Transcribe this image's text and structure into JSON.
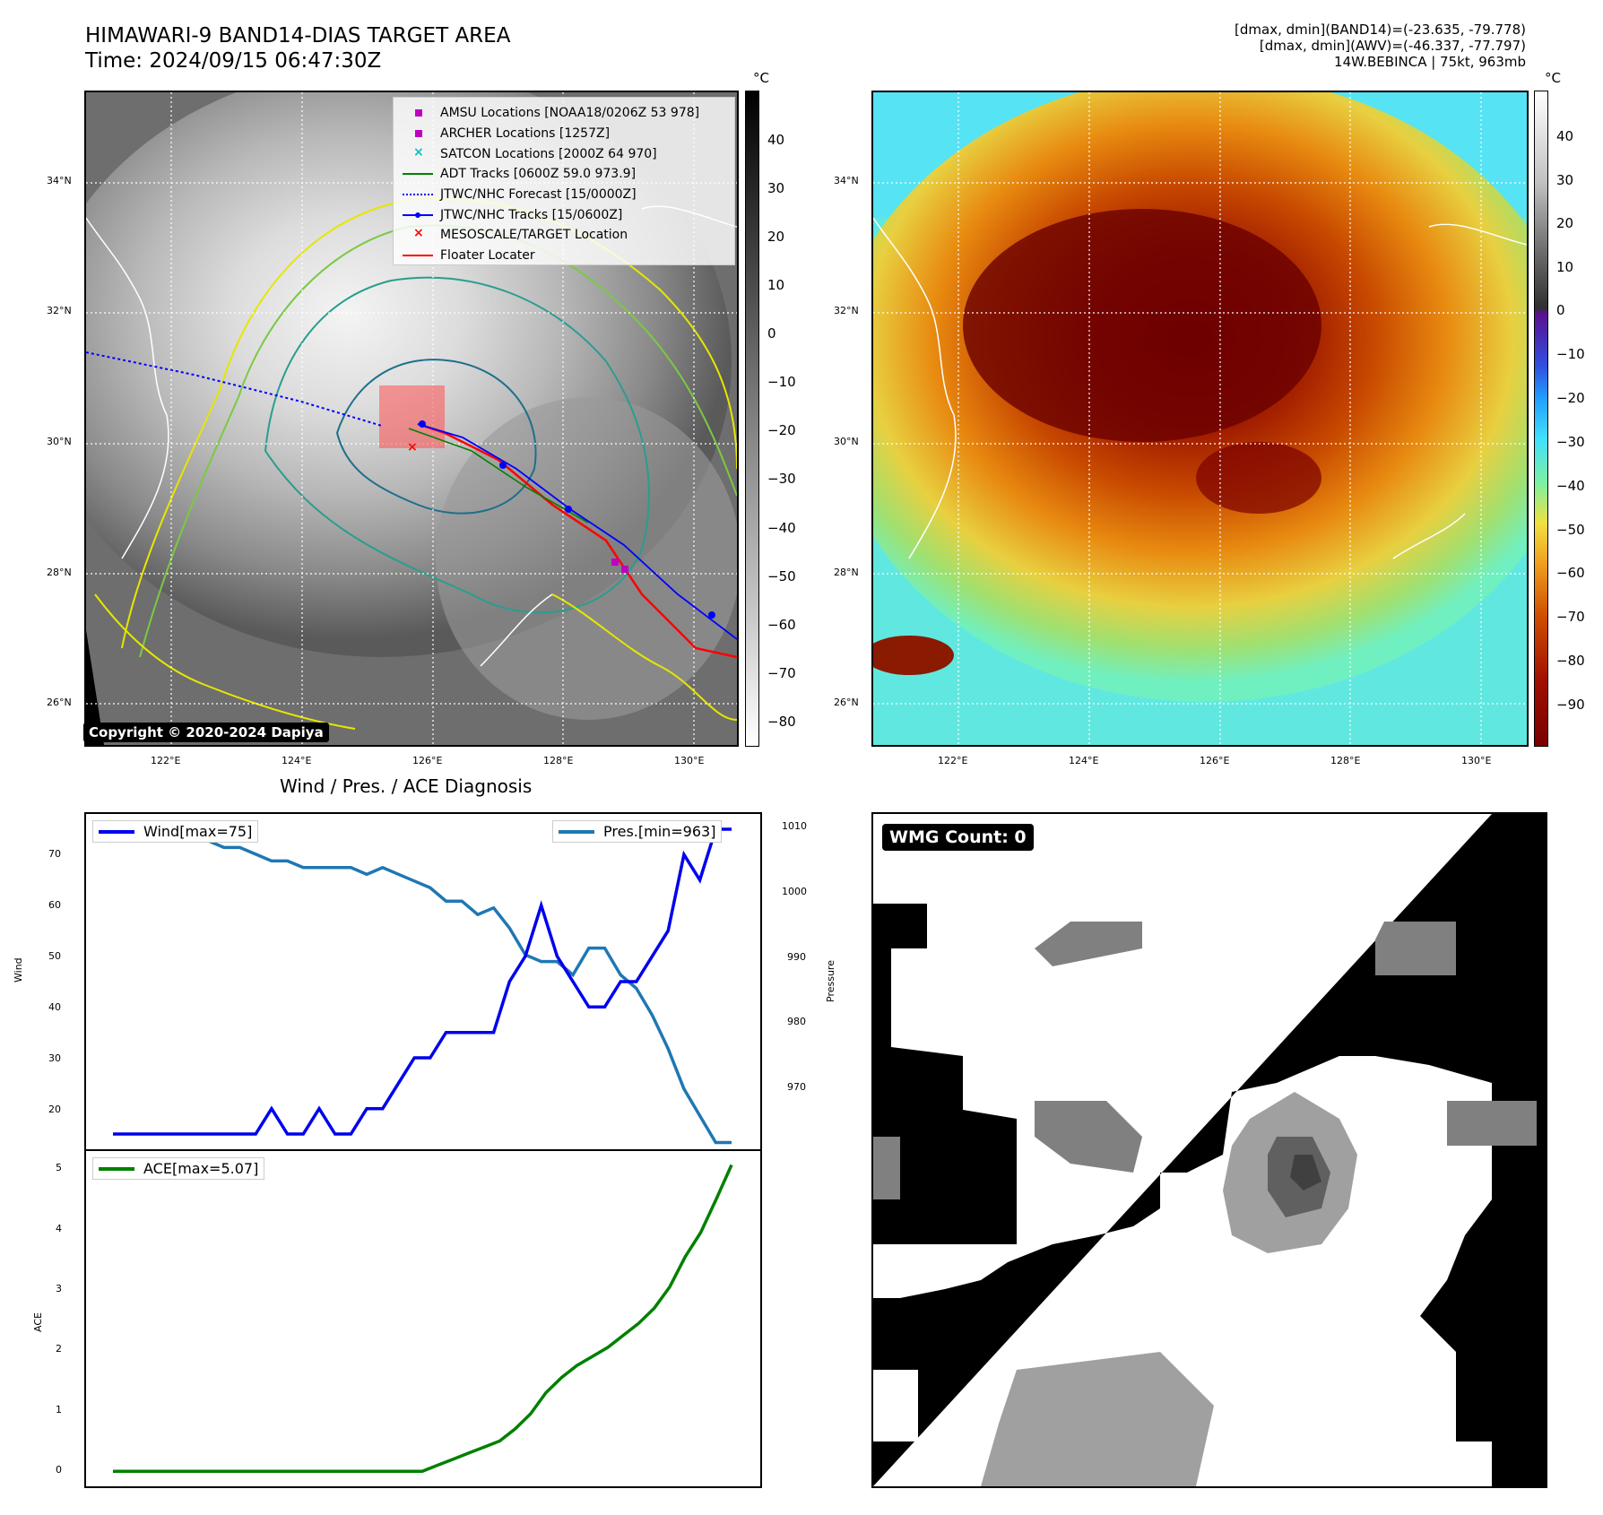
{
  "header": {
    "title_line1": "HIMAWARI-9 BAND14-DIAS TARGET AREA",
    "title_line2": "Time: 2024/09/15 06:47:30Z",
    "info_line1": "[dmax, dmin](BAND14)=(-23.635, -79.778)",
    "info_line2": "[dmax, dmin](AWV)=(-46.337, -77.797)",
    "info_line3": "14W.BEBINCA | 75kt, 963mb"
  },
  "map": {
    "lat_labels": [
      "34°N",
      "32°N",
      "30°N",
      "28°N",
      "26°N"
    ],
    "lon_labels": [
      "122°E",
      "124°E",
      "126°E",
      "128°E",
      "130°E"
    ],
    "copyright": "Copyright © 2020-2024 Dapiya",
    "legend": [
      {
        "label": "AMSU Locations [NOAA18/0206Z 53 978]",
        "symbol": "square",
        "color": "#c000c0"
      },
      {
        "label": "ARCHER Locations [1257Z]",
        "symbol": "square",
        "color": "#c000c0"
      },
      {
        "label": "SATCON Locations [2000Z 64 970]",
        "symbol": "x",
        "color": "#00bfbf"
      },
      {
        "label": "ADT Tracks [0600Z 59.0 973.9]",
        "symbol": "line",
        "color": "#008000"
      },
      {
        "label": "JTWC/NHC Forecast [15/0000Z]",
        "symbol": "dotted",
        "color": "#0000ff"
      },
      {
        "label": "JTWC/NHC Tracks [15/0600Z]",
        "symbol": "line-dot",
        "color": "#0000ff"
      },
      {
        "label": "MESOSCALE/TARGET Location",
        "symbol": "x",
        "color": "#ff0000"
      },
      {
        "label": "Floater Locater",
        "symbol": "line",
        "color": "#ff0000"
      }
    ]
  },
  "colorbars": {
    "unit": "°C",
    "left_ticks": [
      "40",
      "30",
      "20",
      "10",
      "0",
      "−10",
      "−20",
      "−30",
      "−40",
      "−50",
      "−60",
      "−70",
      "−80"
    ],
    "right_ticks": [
      "40",
      "30",
      "20",
      "10",
      "0",
      "−10",
      "−20",
      "−30",
      "−40",
      "−50",
      "−60",
      "−70",
      "−80",
      "−90"
    ]
  },
  "diagnosis": {
    "title": "Wind / Pres. / ACE Diagnosis",
    "wind_axis_label": "Wind",
    "pressure_axis_label": "Pressure",
    "ace_axis_label": "ACE",
    "wind_ticks": [
      "70",
      "60",
      "50",
      "40",
      "30",
      "20"
    ],
    "pressure_ticks": [
      "1010",
      "1000",
      "990",
      "980",
      "970"
    ],
    "ace_ticks": [
      "5",
      "4",
      "3",
      "2",
      "1",
      "0"
    ],
    "wind_legend": "Wind[max=75]",
    "pressure_legend": "Pres.[min=963]",
    "ace_legend": "ACE[max=5.07]"
  },
  "wmg": {
    "label": "WMG Count: 0"
  },
  "chart_data": [
    {
      "type": "line",
      "series": [
        {
          "name": "Wind[max=75]",
          "color": "#0000ee",
          "values": [
            15,
            15,
            15,
            15,
            15,
            15,
            15,
            15,
            15,
            15,
            20,
            15,
            15,
            20,
            15,
            15,
            20,
            20,
            25,
            30,
            30,
            35,
            35,
            35,
            35,
            45,
            50,
            60,
            50,
            45,
            40,
            40,
            45,
            45,
            50,
            55,
            70,
            65,
            75,
            75
          ]
        },
        {
          "name": "Pres.[min=963]",
          "color": "#1f77b4",
          "values": [
            1009,
            1008,
            1008,
            1008,
            1008,
            1008,
            1008,
            1007,
            1007,
            1006,
            1005,
            1005,
            1004,
            1004,
            1004,
            1004,
            1003,
            1004,
            1003,
            1002,
            1001,
            999,
            999,
            997,
            998,
            995,
            991,
            990,
            990,
            988,
            992,
            992,
            988,
            986,
            982,
            977,
            971,
            967,
            963,
            963
          ]
        }
      ],
      "ylim_wind": [
        12,
        78
      ],
      "ylim_pressure": [
        962,
        1012
      ]
    },
    {
      "type": "line",
      "series": [
        {
          "name": "ACE[max=5.07]",
          "color": "#008000",
          "values": [
            0,
            0,
            0,
            0,
            0,
            0,
            0,
            0,
            0,
            0,
            0,
            0,
            0,
            0,
            0,
            0,
            0,
            0,
            0,
            0,
            0,
            0.1,
            0.2,
            0.3,
            0.4,
            0.5,
            0.7,
            0.95,
            1.3,
            1.55,
            1.75,
            1.9,
            2.05,
            2.25,
            2.45,
            2.7,
            3.05,
            3.55,
            3.95,
            4.5,
            5.07
          ]
        }
      ],
      "ylim": [
        -0.25,
        5.3
      ]
    }
  ]
}
